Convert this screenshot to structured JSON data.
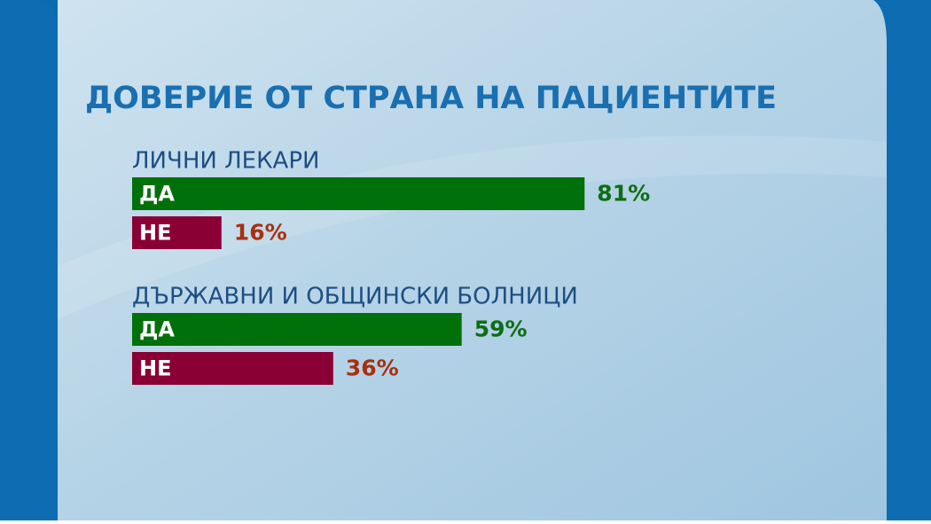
{
  "title": "ДОВЕРИЕ ОТ СТРАНА НА ПАЦИЕНТИТЕ",
  "chart_data": [
    {
      "type": "hbar",
      "title": "ЛИЧНИ ЛЕКАРИ",
      "categories": [
        "ДА",
        "НЕ"
      ],
      "values": [
        81,
        16
      ],
      "value_labels": [
        "81%",
        "16%"
      ],
      "colors": [
        "#00700a",
        "#8a0035"
      ],
      "label_colors": [
        "#0c6e12",
        "#a8300e"
      ]
    },
    {
      "type": "hbar",
      "title": "ДЪРЖАВНИ И ОБЩИНСКИ БОЛНИЦИ",
      "categories": [
        "ДА",
        "НЕ"
      ],
      "values": [
        59,
        36
      ],
      "value_labels": [
        "59%",
        "36%"
      ],
      "colors": [
        "#00700a",
        "#8a0035"
      ],
      "label_colors": [
        "#0c6e12",
        "#a8300e"
      ]
    }
  ]
}
